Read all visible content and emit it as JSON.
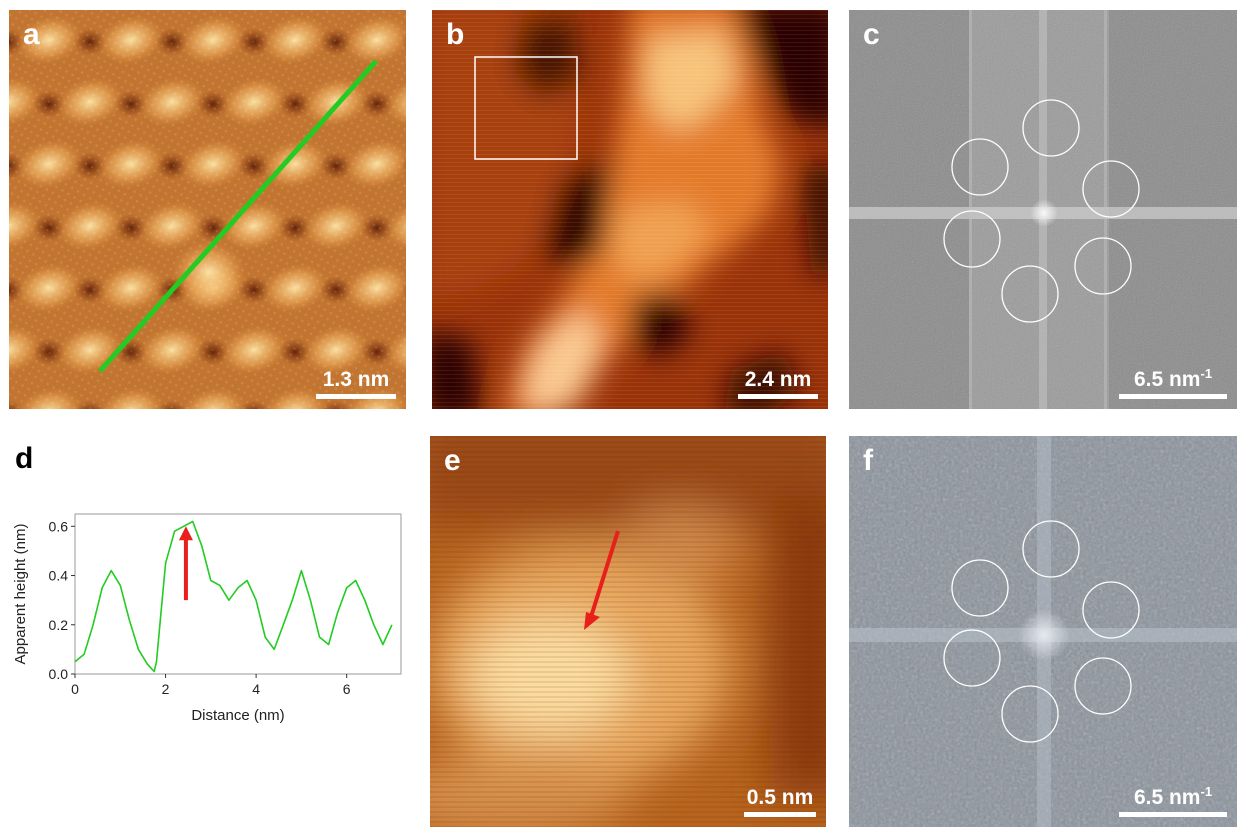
{
  "panels": {
    "a": {
      "label": "a",
      "scale": "1.3 nm"
    },
    "b": {
      "label": "b",
      "scale": "2.4 nm"
    },
    "c": {
      "label": "c",
      "scale": "6.5 nm",
      "scale_sup": "-1"
    },
    "d": {
      "label": "d"
    },
    "e": {
      "label": "e",
      "scale": "0.5 nm"
    },
    "f": {
      "label": "f",
      "scale": "6.5 nm",
      "scale_sup": "-1"
    }
  },
  "colors": {
    "line_profile": "#22cc22",
    "arrow": "#e8201c",
    "stm_dark": "#3a0e00",
    "stm_mid": "#c2631c",
    "stm_bright": "#fde6a8"
  },
  "chart_data": {
    "type": "line",
    "title": "",
    "xlabel": "Distance (nm)",
    "ylabel": "Apparent height (nm)",
    "xlim": [
      0,
      7.2
    ],
    "ylim": [
      0,
      0.65
    ],
    "xticks": [
      "0",
      "2",
      "4",
      "6"
    ],
    "yticks": [
      "0.0",
      "0.2",
      "0.4",
      "0.6"
    ],
    "grid": false,
    "series": [
      {
        "x": [
          0.0,
          0.2,
          0.4,
          0.6,
          0.8,
          1.0,
          1.2,
          1.4,
          1.6,
          1.75,
          1.8,
          1.9,
          2.0,
          2.2,
          2.4,
          2.6,
          2.8,
          3.0,
          3.2,
          3.4,
          3.6,
          3.8,
          4.0,
          4.2,
          4.4,
          4.6,
          4.8,
          5.0,
          5.2,
          5.4,
          5.6,
          5.8,
          6.0,
          6.2,
          6.4,
          6.6,
          6.8,
          7.0
        ],
        "y": [
          0.05,
          0.08,
          0.2,
          0.35,
          0.42,
          0.36,
          0.22,
          0.1,
          0.04,
          0.01,
          0.05,
          0.25,
          0.45,
          0.58,
          0.6,
          0.62,
          0.52,
          0.38,
          0.36,
          0.3,
          0.35,
          0.38,
          0.3,
          0.15,
          0.1,
          0.2,
          0.3,
          0.42,
          0.3,
          0.15,
          0.12,
          0.25,
          0.35,
          0.38,
          0.3,
          0.2,
          0.12,
          0.2
        ]
      }
    ],
    "annotations": [
      {
        "type": "arrow",
        "x": 2.45,
        "y_from": 0.3,
        "y_to": 0.6
      }
    ]
  }
}
